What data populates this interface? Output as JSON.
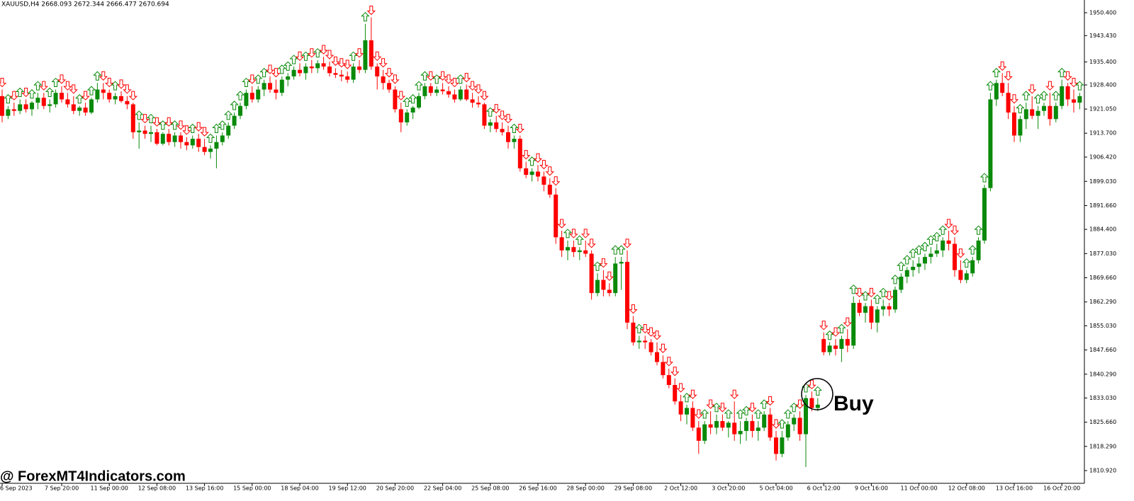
{
  "chart_data": {
    "type": "candlestick",
    "header": "XAUUSD,H4  2668.093 2672.344 2666.477 2670.694",
    "annotation": "Buy",
    "watermark": "@ ForexMT4Indicators.com",
    "up_color": "#0a8a0a",
    "down_color": "#ff0000",
    "ylim": [
      1807.04,
      1954.28
    ],
    "yticks": [
      {
        "value": 1950.4,
        "label": "1950.400"
      },
      {
        "value": 1943.43,
        "label": "1943.430"
      },
      {
        "value": 1935.4,
        "label": "1935.400"
      },
      {
        "value": 1928.4,
        "label": "1928.400"
      },
      {
        "value": 1921.05,
        "label": "1921.050"
      },
      {
        "value": 1913.7,
        "label": "1913.700"
      },
      {
        "value": 1906.42,
        "label": "1906.420"
      },
      {
        "value": 1899.03,
        "label": "1899.030"
      },
      {
        "value": 1891.66,
        "label": "1891.660"
      },
      {
        "value": 1884.4,
        "label": "1884.400"
      },
      {
        "value": 1877.03,
        "label": "1877.030"
      },
      {
        "value": 1869.66,
        "label": "1869.660"
      },
      {
        "value": 1862.29,
        "label": "1862.290"
      },
      {
        "value": 1855.03,
        "label": "1855.030"
      },
      {
        "value": 1847.66,
        "label": "1847.660"
      },
      {
        "value": 1840.29,
        "label": "1840.290"
      },
      {
        "value": 1833.03,
        "label": "1833.030"
      },
      {
        "value": 1825.66,
        "label": "1825.660"
      },
      {
        "value": 1818.29,
        "label": "1818.290"
      },
      {
        "value": 1810.92,
        "label": "1810.920"
      }
    ],
    "categories": [
      "6 Sep 2023",
      null,
      null,
      null,
      null,
      null,
      null,
      null,
      null,
      null,
      "7 Sep 20:00",
      null,
      null,
      null,
      null,
      null,
      null,
      null,
      "11 Sep 00:00",
      null,
      null,
      null,
      null,
      null,
      null,
      null,
      "12 Sep 08:00",
      null,
      null,
      null,
      null,
      null,
      null,
      null,
      "13 Sep 16:00",
      null,
      null,
      null,
      null,
      null,
      null,
      null,
      "15 Sep 00:00",
      null,
      null,
      null,
      null,
      null,
      null,
      null,
      "18 Sep 04:00",
      null,
      null,
      null,
      null,
      null,
      null,
      null,
      "19 Sep 12:00",
      null,
      null,
      null,
      null,
      null,
      null,
      null,
      "20 Sep 20:00",
      null,
      null,
      null,
      null,
      null,
      null,
      null,
      "22 Sep 04:00",
      null,
      null,
      null,
      null,
      null,
      null,
      null,
      "25 Sep 08:00",
      null,
      null,
      null,
      null,
      null,
      null,
      null,
      "26 Sep 16:00",
      null,
      null,
      null,
      null,
      null,
      null,
      null,
      "28 Sep 00:00",
      null,
      null,
      null,
      null,
      null,
      null,
      null,
      "29 Sep 08:00",
      null,
      null,
      null,
      null,
      null,
      null,
      null,
      "2 Oct 12:00",
      null,
      null,
      null,
      null,
      null,
      null,
      null,
      "3 Oct 20:00",
      null,
      null,
      null,
      null,
      null,
      null,
      null,
      "5 Oct 04:00",
      null,
      null,
      null,
      null,
      null,
      null,
      null,
      "6 Oct 12:00",
      null,
      null,
      null,
      null,
      null,
      null,
      null,
      "9 Oct 16:00",
      null,
      null,
      null,
      null,
      null,
      null,
      null,
      "11 Oct 00:00",
      null,
      null,
      null,
      null,
      null,
      null,
      null,
      "12 Oct 08:00",
      null,
      null,
      null,
      null,
      null,
      null,
      null,
      "13 Oct 16:00",
      null,
      null,
      null,
      null,
      null,
      null,
      null,
      "16 Oct 20:00",
      null,
      null,
      null
    ],
    "ohlc": [
      [
        1925,
        1927,
        1917,
        1919
      ],
      [
        1919,
        1922,
        1918,
        1921
      ],
      [
        1921,
        1923,
        1919,
        1920.5
      ],
      [
        1920.5,
        1924,
        1919.5,
        1922.5
      ],
      [
        1922.5,
        1924,
        1920,
        1921
      ],
      [
        1921,
        1923.5,
        1919,
        1923
      ],
      [
        1923,
        1926,
        1921,
        1924.5
      ],
      [
        1924.5,
        1926,
        1921,
        1922
      ],
      [
        1922,
        1924,
        1920,
        1922.5
      ],
      [
        1922.5,
        1927,
        1921.5,
        1926
      ],
      [
        1926,
        1928,
        1923,
        1924
      ],
      [
        1924,
        1926,
        1921.5,
        1922.5
      ],
      [
        1922.5,
        1925,
        1919.5,
        1920.5
      ],
      [
        1920.5,
        1922,
        1919,
        1921.5
      ],
      [
        1921.5,
        1923,
        1919,
        1920
      ],
      [
        1920,
        1924.5,
        1919.5,
        1924
      ],
      [
        1924,
        1929,
        1923,
        1927
      ],
      [
        1927,
        1929,
        1924,
        1926
      ],
      [
        1926,
        1927,
        1923,
        1924
      ],
      [
        1924,
        1926,
        1922.5,
        1925
      ],
      [
        1925,
        1926.5,
        1923,
        1923.5
      ],
      [
        1923.5,
        1925,
        1921,
        1922.5
      ],
      [
        1922.5,
        1923,
        1912,
        1914
      ],
      [
        1914,
        1917,
        1909,
        1914.5
      ],
      [
        1914.5,
        1916,
        1912,
        1913.5
      ],
      [
        1913.5,
        1916,
        1911,
        1914
      ],
      [
        1914,
        1915,
        1910,
        1910.5
      ],
      [
        1910.5,
        1914,
        1910,
        1913.5
      ],
      [
        1913.5,
        1915,
        1910,
        1911
      ],
      [
        1911,
        1914,
        1909.5,
        1913
      ],
      [
        1913,
        1914,
        1909,
        1911
      ],
      [
        1911,
        1912.5,
        1908.5,
        1910
      ],
      [
        1910,
        1913,
        1909,
        1912
      ],
      [
        1912,
        1913.5,
        1908,
        1909.5
      ],
      [
        1909.5,
        1912,
        1907,
        1908
      ],
      [
        1908,
        1910,
        1906,
        1909
      ],
      [
        1909,
        1913,
        1903,
        1911
      ],
      [
        1911,
        1914,
        1910,
        1913
      ],
      [
        1913,
        1917,
        1912,
        1916
      ],
      [
        1916,
        1920,
        1915,
        1919
      ],
      [
        1919,
        1923,
        1918,
        1922
      ],
      [
        1922,
        1927,
        1921,
        1926
      ],
      [
        1926,
        1928,
        1923,
        1924
      ],
      [
        1924,
        1928,
        1923,
        1927
      ],
      [
        1927,
        1930,
        1925,
        1929
      ],
      [
        1929,
        1931,
        1926,
        1927
      ],
      [
        1927,
        1930,
        1924,
        1926
      ],
      [
        1926,
        1931,
        1925,
        1930
      ],
      [
        1930,
        1932,
        1928,
        1931
      ],
      [
        1931,
        1934,
        1930,
        1933
      ],
      [
        1933,
        1935,
        1931,
        1932
      ],
      [
        1932,
        1935,
        1930,
        1934
      ],
      [
        1934,
        1936,
        1932,
        1933.5
      ],
      [
        1933.5,
        1936,
        1932,
        1935
      ],
      [
        1935,
        1937,
        1933,
        1934
      ],
      [
        1934,
        1935.5,
        1931,
        1932
      ],
      [
        1932,
        1933.5,
        1930.5,
        1931.5
      ],
      [
        1931.5,
        1933,
        1929.5,
        1931
      ],
      [
        1931,
        1932.5,
        1929,
        1930
      ],
      [
        1930,
        1935,
        1929,
        1934
      ],
      [
        1934,
        1936,
        1932,
        1933
      ],
      [
        1933,
        1947,
        1932,
        1942
      ],
      [
        1942,
        1949,
        1933,
        1934
      ],
      [
        1934,
        1935,
        1927,
        1931
      ],
      [
        1931,
        1933,
        1927,
        1929
      ],
      [
        1929,
        1930,
        1926,
        1927
      ],
      [
        1927,
        1928,
        1920,
        1921
      ],
      [
        1921,
        1923,
        1914,
        1917
      ],
      [
        1917,
        1921,
        1916,
        1920
      ],
      [
        1920,
        1922,
        1918,
        1921.5
      ],
      [
        1921.5,
        1926,
        1921,
        1925
      ],
      [
        1925,
        1929,
        1924,
        1928
      ],
      [
        1928,
        1929,
        1925,
        1926
      ],
      [
        1926,
        1928,
        1925,
        1927
      ],
      [
        1927,
        1929,
        1925.5,
        1926.5
      ],
      [
        1926.5,
        1928,
        1924.5,
        1925.5
      ],
      [
        1925.5,
        1927,
        1923,
        1924
      ],
      [
        1924,
        1928,
        1923.5,
        1927
      ],
      [
        1927,
        1928.5,
        1923.5,
        1924
      ],
      [
        1924,
        1926,
        1921.5,
        1923
      ],
      [
        1923,
        1925,
        1921.5,
        1922.5
      ],
      [
        1922.5,
        1923,
        1915,
        1916
      ],
      [
        1916,
        1918,
        1914,
        1917
      ],
      [
        1917,
        1919,
        1914,
        1915
      ],
      [
        1915,
        1917,
        1913,
        1914
      ],
      [
        1914,
        1916,
        1909,
        1911
      ],
      [
        1911,
        1913,
        1909,
        1912
      ],
      [
        1912,
        1913,
        1902,
        1903
      ],
      [
        1903,
        1905,
        1900,
        1901
      ],
      [
        1901,
        1903,
        1899,
        1902
      ],
      [
        1902,
        1904,
        1899,
        1900.5
      ],
      [
        1900.5,
        1902,
        1896,
        1898
      ],
      [
        1898,
        1900,
        1894,
        1895
      ],
      [
        1895,
        1897,
        1880,
        1882
      ],
      [
        1882,
        1884,
        1876,
        1878
      ],
      [
        1878,
        1881,
        1875,
        1879
      ],
      [
        1879,
        1881,
        1876,
        1877.5
      ],
      [
        1877.5,
        1879,
        1875,
        1878
      ],
      [
        1878,
        1881,
        1876,
        1877
      ],
      [
        1877,
        1878,
        1863,
        1865
      ],
      [
        1865,
        1871,
        1864,
        1869
      ],
      [
        1869,
        1872,
        1864,
        1866
      ],
      [
        1866,
        1868,
        1864,
        1865
      ],
      [
        1865,
        1876,
        1864,
        1874
      ],
      [
        1874,
        1876,
        1866,
        1874.5
      ],
      [
        1874.5,
        1878,
        1854,
        1856
      ],
      [
        1856,
        1858,
        1849,
        1850
      ],
      [
        1850,
        1852,
        1848,
        1850.5
      ],
      [
        1850.5,
        1852,
        1848,
        1850
      ],
      [
        1850,
        1851,
        1846,
        1847
      ],
      [
        1847,
        1850,
        1843,
        1844
      ],
      [
        1844,
        1846,
        1839,
        1840
      ],
      [
        1840,
        1842,
        1836,
        1837
      ],
      [
        1837,
        1839,
        1831,
        1832
      ],
      [
        1832,
        1834,
        1826,
        1828
      ],
      [
        1828,
        1831,
        1825,
        1830
      ],
      [
        1830,
        1832,
        1823,
        1824
      ],
      [
        1824,
        1826,
        1816,
        1820
      ],
      [
        1820,
        1826,
        1819,
        1825
      ],
      [
        1825,
        1829,
        1822,
        1824
      ],
      [
        1824,
        1828,
        1822,
        1826
      ],
      [
        1826,
        1828,
        1823,
        1824
      ],
      [
        1824,
        1826,
        1821,
        1825.5
      ],
      [
        1825.5,
        1832,
        1820,
        1822
      ],
      [
        1822,
        1826,
        1819,
        1823
      ],
      [
        1823,
        1827,
        1820,
        1826
      ],
      [
        1826,
        1828,
        1821,
        1823
      ],
      [
        1823,
        1826,
        1820,
        1824
      ],
      [
        1824,
        1829,
        1823,
        1828
      ],
      [
        1828,
        1830,
        1820,
        1821
      ],
      [
        1821,
        1823,
        1814,
        1816
      ],
      [
        1816,
        1823,
        1815,
        1821
      ],
      [
        1821,
        1826,
        1820,
        1825
      ],
      [
        1825,
        1828,
        1823,
        1827
      ],
      [
        1827,
        1829,
        1820,
        1822
      ],
      [
        1822,
        1834,
        1812,
        1833
      ],
      [
        1833,
        1835,
        1829,
        1830
      ],
      [
        1830,
        1833,
        1829,
        1831
      ],
      [
        1851,
        1853,
        1846,
        1847
      ],
      [
        1847,
        1850,
        1846,
        1849
      ],
      [
        1849,
        1851,
        1846,
        1848
      ],
      [
        1848,
        1852,
        1844,
        1851
      ],
      [
        1851,
        1854,
        1847,
        1849
      ],
      [
        1849,
        1864,
        1848,
        1862
      ],
      [
        1862,
        1863,
        1858,
        1859
      ],
      [
        1859,
        1862,
        1856,
        1861
      ],
      [
        1861,
        1863,
        1854,
        1856
      ],
      [
        1856,
        1861,
        1853,
        1860
      ],
      [
        1860,
        1863,
        1858,
        1861
      ],
      [
        1861,
        1862,
        1858,
        1860
      ],
      [
        1860,
        1867,
        1859,
        1866
      ],
      [
        1866,
        1871,
        1865,
        1870
      ],
      [
        1870,
        1873,
        1868,
        1872
      ],
      [
        1872,
        1875,
        1870,
        1873
      ],
      [
        1873,
        1876,
        1871,
        1874
      ],
      [
        1874,
        1877,
        1872,
        1876
      ],
      [
        1876,
        1879,
        1874,
        1877
      ],
      [
        1877,
        1880,
        1876,
        1878
      ],
      [
        1878,
        1882,
        1876,
        1881
      ],
      [
        1881,
        1884,
        1878,
        1880
      ],
      [
        1880,
        1882,
        1870,
        1872
      ],
      [
        1872,
        1875,
        1868,
        1869
      ],
      [
        1869,
        1872,
        1868,
        1871
      ],
      [
        1871,
        1876,
        1870,
        1875
      ],
      [
        1875,
        1882,
        1874,
        1881
      ],
      [
        1881,
        1898,
        1880,
        1897
      ],
      [
        1897,
        1926,
        1896,
        1924
      ],
      [
        1924,
        1930,
        1922,
        1929
      ],
      [
        1929,
        1932,
        1925,
        1926
      ],
      [
        1926,
        1929,
        1918,
        1920
      ],
      [
        1920,
        1922,
        1911,
        1913
      ],
      [
        1913,
        1919,
        1911,
        1918
      ],
      [
        1918,
        1923,
        1915,
        1921
      ],
      [
        1921,
        1925,
        1918,
        1919
      ],
      [
        1919,
        1922,
        1915,
        1920.5
      ],
      [
        1920.5,
        1923,
        1919,
        1922
      ],
      [
        1922,
        1926,
        1916,
        1918
      ],
      [
        1918,
        1923,
        1917,
        1922
      ],
      [
        1922,
        1930,
        1921,
        1928
      ],
      [
        1928,
        1929,
        1922,
        1924
      ],
      [
        1924,
        1927,
        1920,
        1923
      ],
      [
        1923,
        1926,
        1921,
        1925
      ]
    ]
  }
}
